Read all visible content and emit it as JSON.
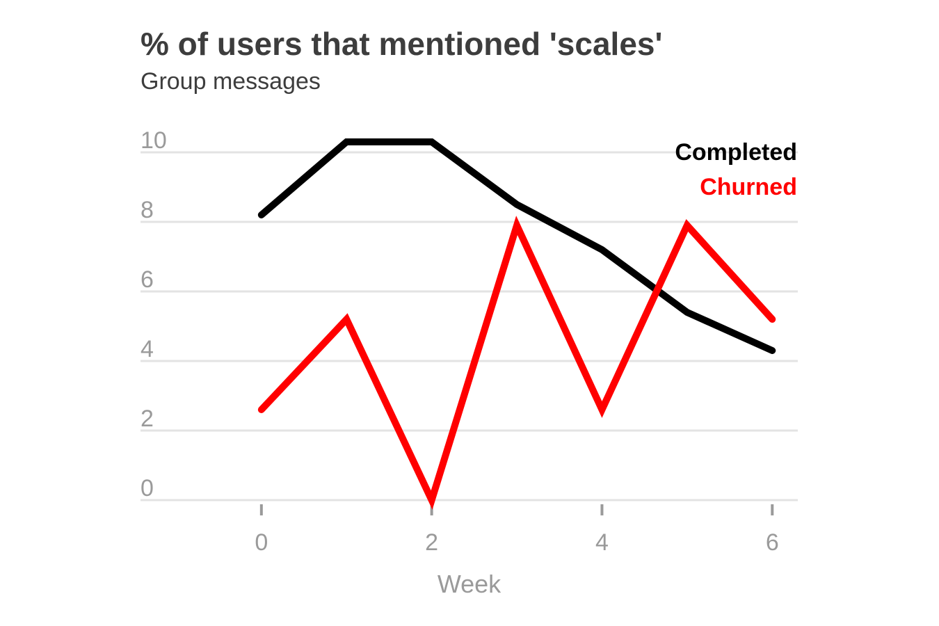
{
  "title": "% of users that mentioned 'scales'",
  "subtitle": "Group messages",
  "colors": {
    "gridline": "#e3e3e3",
    "tick_text": "#9a9a9a",
    "title_text": "#3d3d3d"
  },
  "chart_data": {
    "type": "line",
    "title": "% of users that mentioned 'scales'",
    "subtitle": "Group messages",
    "xlabel": "Week",
    "ylabel": "",
    "x": [
      0,
      1,
      2,
      3,
      4,
      5,
      6
    ],
    "xlim": [
      -1.42,
      6.3
    ],
    "ylim": [
      0,
      10
    ],
    "xticks": [
      0,
      2,
      4,
      6
    ],
    "yticks": [
      0,
      2,
      4,
      6,
      8,
      10
    ],
    "grid": true,
    "legend_position": "top-right",
    "series": [
      {
        "name": "Completed",
        "color": "#000000",
        "values": [
          8.2,
          10.3,
          10.3,
          8.5,
          7.2,
          5.4,
          4.3
        ]
      },
      {
        "name": "Churned",
        "color": "#ff0000",
        "values": [
          2.6,
          5.2,
          0.0,
          7.9,
          2.6,
          7.9,
          5.2
        ]
      }
    ]
  }
}
